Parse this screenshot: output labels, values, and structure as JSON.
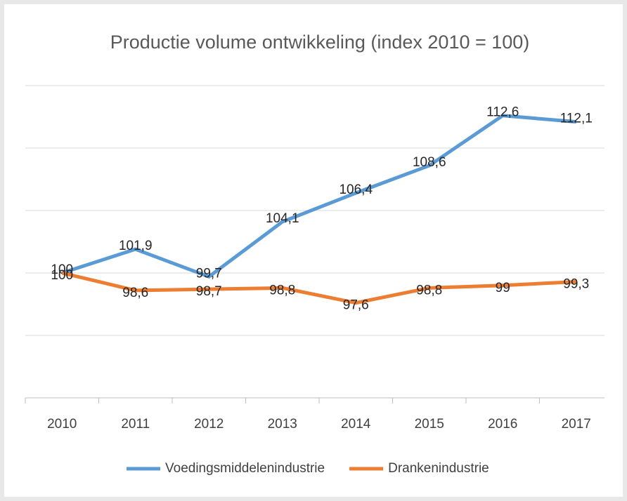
{
  "chart_data": {
    "type": "line",
    "title": "Productie volume ontwikkeling (index 2010 = 100)",
    "categories": [
      "2010",
      "2011",
      "2012",
      "2013",
      "2014",
      "2015",
      "2016",
      "2017"
    ],
    "series": [
      {
        "name": "Voedingsmiddelenindustrie",
        "color": "#5b9bd5",
        "values": [
          100,
          101.9,
          99.7,
          104.1,
          106.4,
          108.6,
          112.6,
          112.1
        ],
        "value_labels": [
          "100",
          "101,9",
          "99,7",
          "104,1",
          "106,4",
          "108,6",
          "112,6",
          "112,1"
        ]
      },
      {
        "name": "Drankenindustrie",
        "color": "#ed7d31",
        "values": [
          100,
          98.6,
          98.7,
          98.8,
          97.6,
          98.8,
          99,
          99.3
        ],
        "value_labels": [
          "100",
          "98,6",
          "98,7",
          "98,8",
          "97,6",
          "98,8",
          "99",
          "99,3"
        ]
      }
    ],
    "ylim": [
      90,
      115
    ],
    "yticks": [
      90,
      95,
      100,
      105,
      110,
      115
    ],
    "grid": true,
    "legend": "bottom"
  }
}
